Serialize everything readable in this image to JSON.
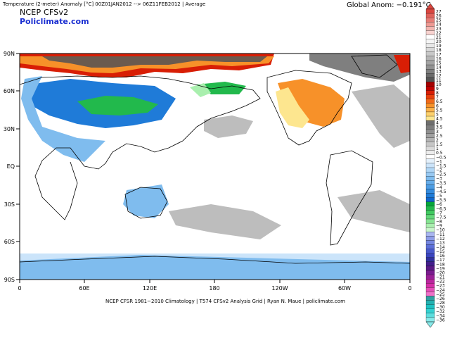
{
  "header": {
    "title": "Temperature (2-meter) Anomaly  [°C]  00Z01JAN2012  -->  06Z11FEB2012  |  Average",
    "model": "NCEP  CFSv2",
    "site": "Policlimate.com",
    "global_anom": "Global Anom: −0.191°C"
  },
  "footer": "NCEP  CFSR  1981−2010 Climatology  |  T574 CFSv2 Analysis Grid  |  Ryan N. Maue  |  policlimate.com",
  "axes": {
    "x_ticks": [
      "0",
      "60E",
      "120E",
      "180",
      "120W",
      "60W",
      "0"
    ],
    "y_ticks": [
      "90N",
      "60N",
      "30N",
      "EQ",
      "30S",
      "60S",
      "90S"
    ]
  },
  "legend": {
    "labels": [
      "27",
      "26",
      "25",
      "24",
      "23",
      "22",
      "21",
      "20",
      "19",
      "18",
      "17",
      "16",
      "15",
      "14",
      "13",
      "12",
      "11",
      "10",
      "9",
      "8",
      "7",
      "6.5",
      "6",
      "5.5",
      "5",
      "4.5",
      "4",
      "3.5",
      "3",
      "2.5",
      "2",
      "1.5",
      "1",
      "0.5",
      "−0.5",
      "−1",
      "−1.5",
      "−2",
      "−2.5",
      "−3",
      "−3.5",
      "−4",
      "−4.5",
      "−5",
      "−5.5",
      "−6",
      "−6.5",
      "−7",
      "−7.5",
      "−8",
      "−9",
      "−10",
      "−11",
      "−12",
      "−13",
      "−14",
      "−15",
      "−16",
      "−17",
      "−18",
      "−19",
      "−20",
      "−21",
      "−22",
      "−23",
      "−24",
      "−25",
      "−26",
      "−28",
      "−30",
      "−32",
      "−34",
      "−36"
    ],
    "colors": [
      "#d9463f",
      "#e0615a",
      "#e77c76",
      "#ee9993",
      "#f3b5b0",
      "#f8d2cf",
      "#ffffff",
      "#f5f5f5",
      "#e8e8e8",
      "#d8d8d8",
      "#c8c8c8",
      "#b6b6b6",
      "#a4a4a4",
      "#929292",
      "#7f7f7f",
      "#6b6b6b",
      "#555555",
      "#a50000",
      "#c00000",
      "#d81e05",
      "#e8400c",
      "#f06a1a",
      "#f79129",
      "#fbb24a",
      "#fdd06c",
      "#fde68f",
      "#6e6e6e",
      "#7d7d7d",
      "#8f8f8f",
      "#a1a1a1",
      "#b3b3b3",
      "#c6c6c6",
      "#d9d9d9",
      "#ececec",
      "#ffffff",
      "#e4f1fc",
      "#cbe4fa",
      "#b1d7f6",
      "#98c9f2",
      "#7fbcee",
      "#66adea",
      "#4d9de4",
      "#348cde",
      "#1f7bd8",
      "#1066cc",
      "#06a53a",
      "#22b94c",
      "#40c960",
      "#62d879",
      "#86e493",
      "#a9efae",
      "#c9f5cb",
      "#a9b6f0",
      "#8e9de8",
      "#7486e0",
      "#5c6fd8",
      "#4858cc",
      "#3a44bf",
      "#30309f",
      "#421e8c",
      "#5a1a86",
      "#7a1c8e",
      "#9a2096",
      "#ba269e",
      "#d62ea8",
      "#e64eb8",
      "#f070c8",
      "#2fa0a0",
      "#23b1b1",
      "#1cc2c2",
      "#35d1d1",
      "#5cdede",
      "#88eaea"
    ]
  },
  "map_colors": {
    "ocean": "#ffffff",
    "land": "#ffffff",
    "coast": "#000000",
    "near_normal_warm": "#bdbdbd",
    "warm_light": "#fde68f",
    "warm_orange": "#f79129",
    "warm_red": "#d81e05",
    "warm_darkred": "#a50000",
    "warm_brown": "#6b5a4e",
    "cool_light": "#cbe4fa",
    "cool_mid": "#7fbcee",
    "cool_strong": "#1f7bd8",
    "cold_green": "#22b94c",
    "cold_lightgreen": "#a9efae"
  }
}
